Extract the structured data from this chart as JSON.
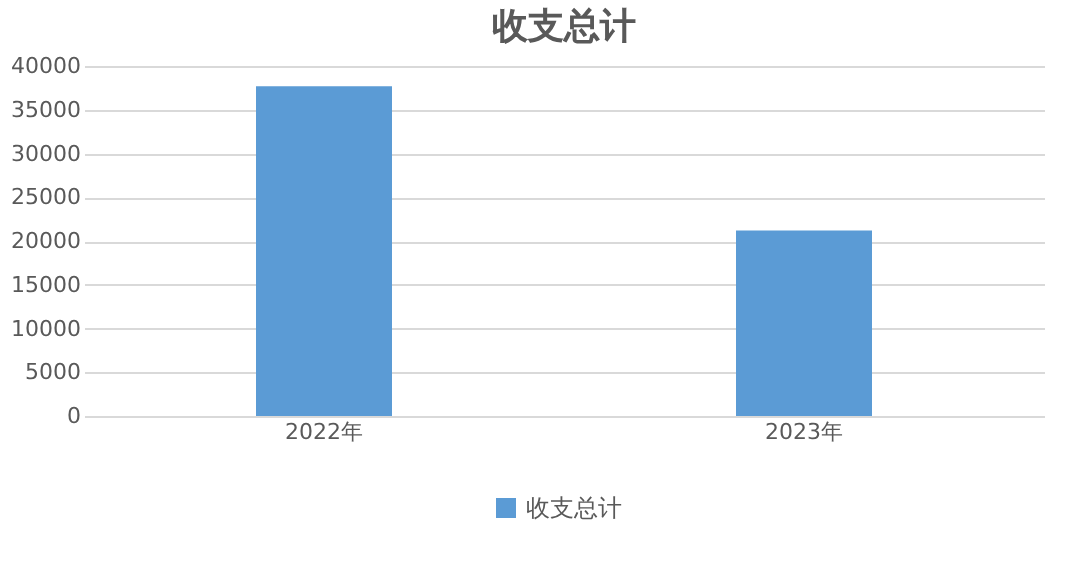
{
  "chart_data": {
    "type": "bar",
    "title": "收支总计",
    "categories": [
      "2022年",
      "2023年"
    ],
    "series": [
      {
        "name": "收支总计",
        "color": "#5b9bd5",
        "values": [
          37700,
          21200
        ]
      }
    ],
    "ylim": [
      0,
      40000
    ],
    "yticks": [
      0,
      5000,
      10000,
      15000,
      20000,
      25000,
      30000,
      35000,
      40000
    ],
    "grid": "y",
    "legend": "bottom"
  }
}
